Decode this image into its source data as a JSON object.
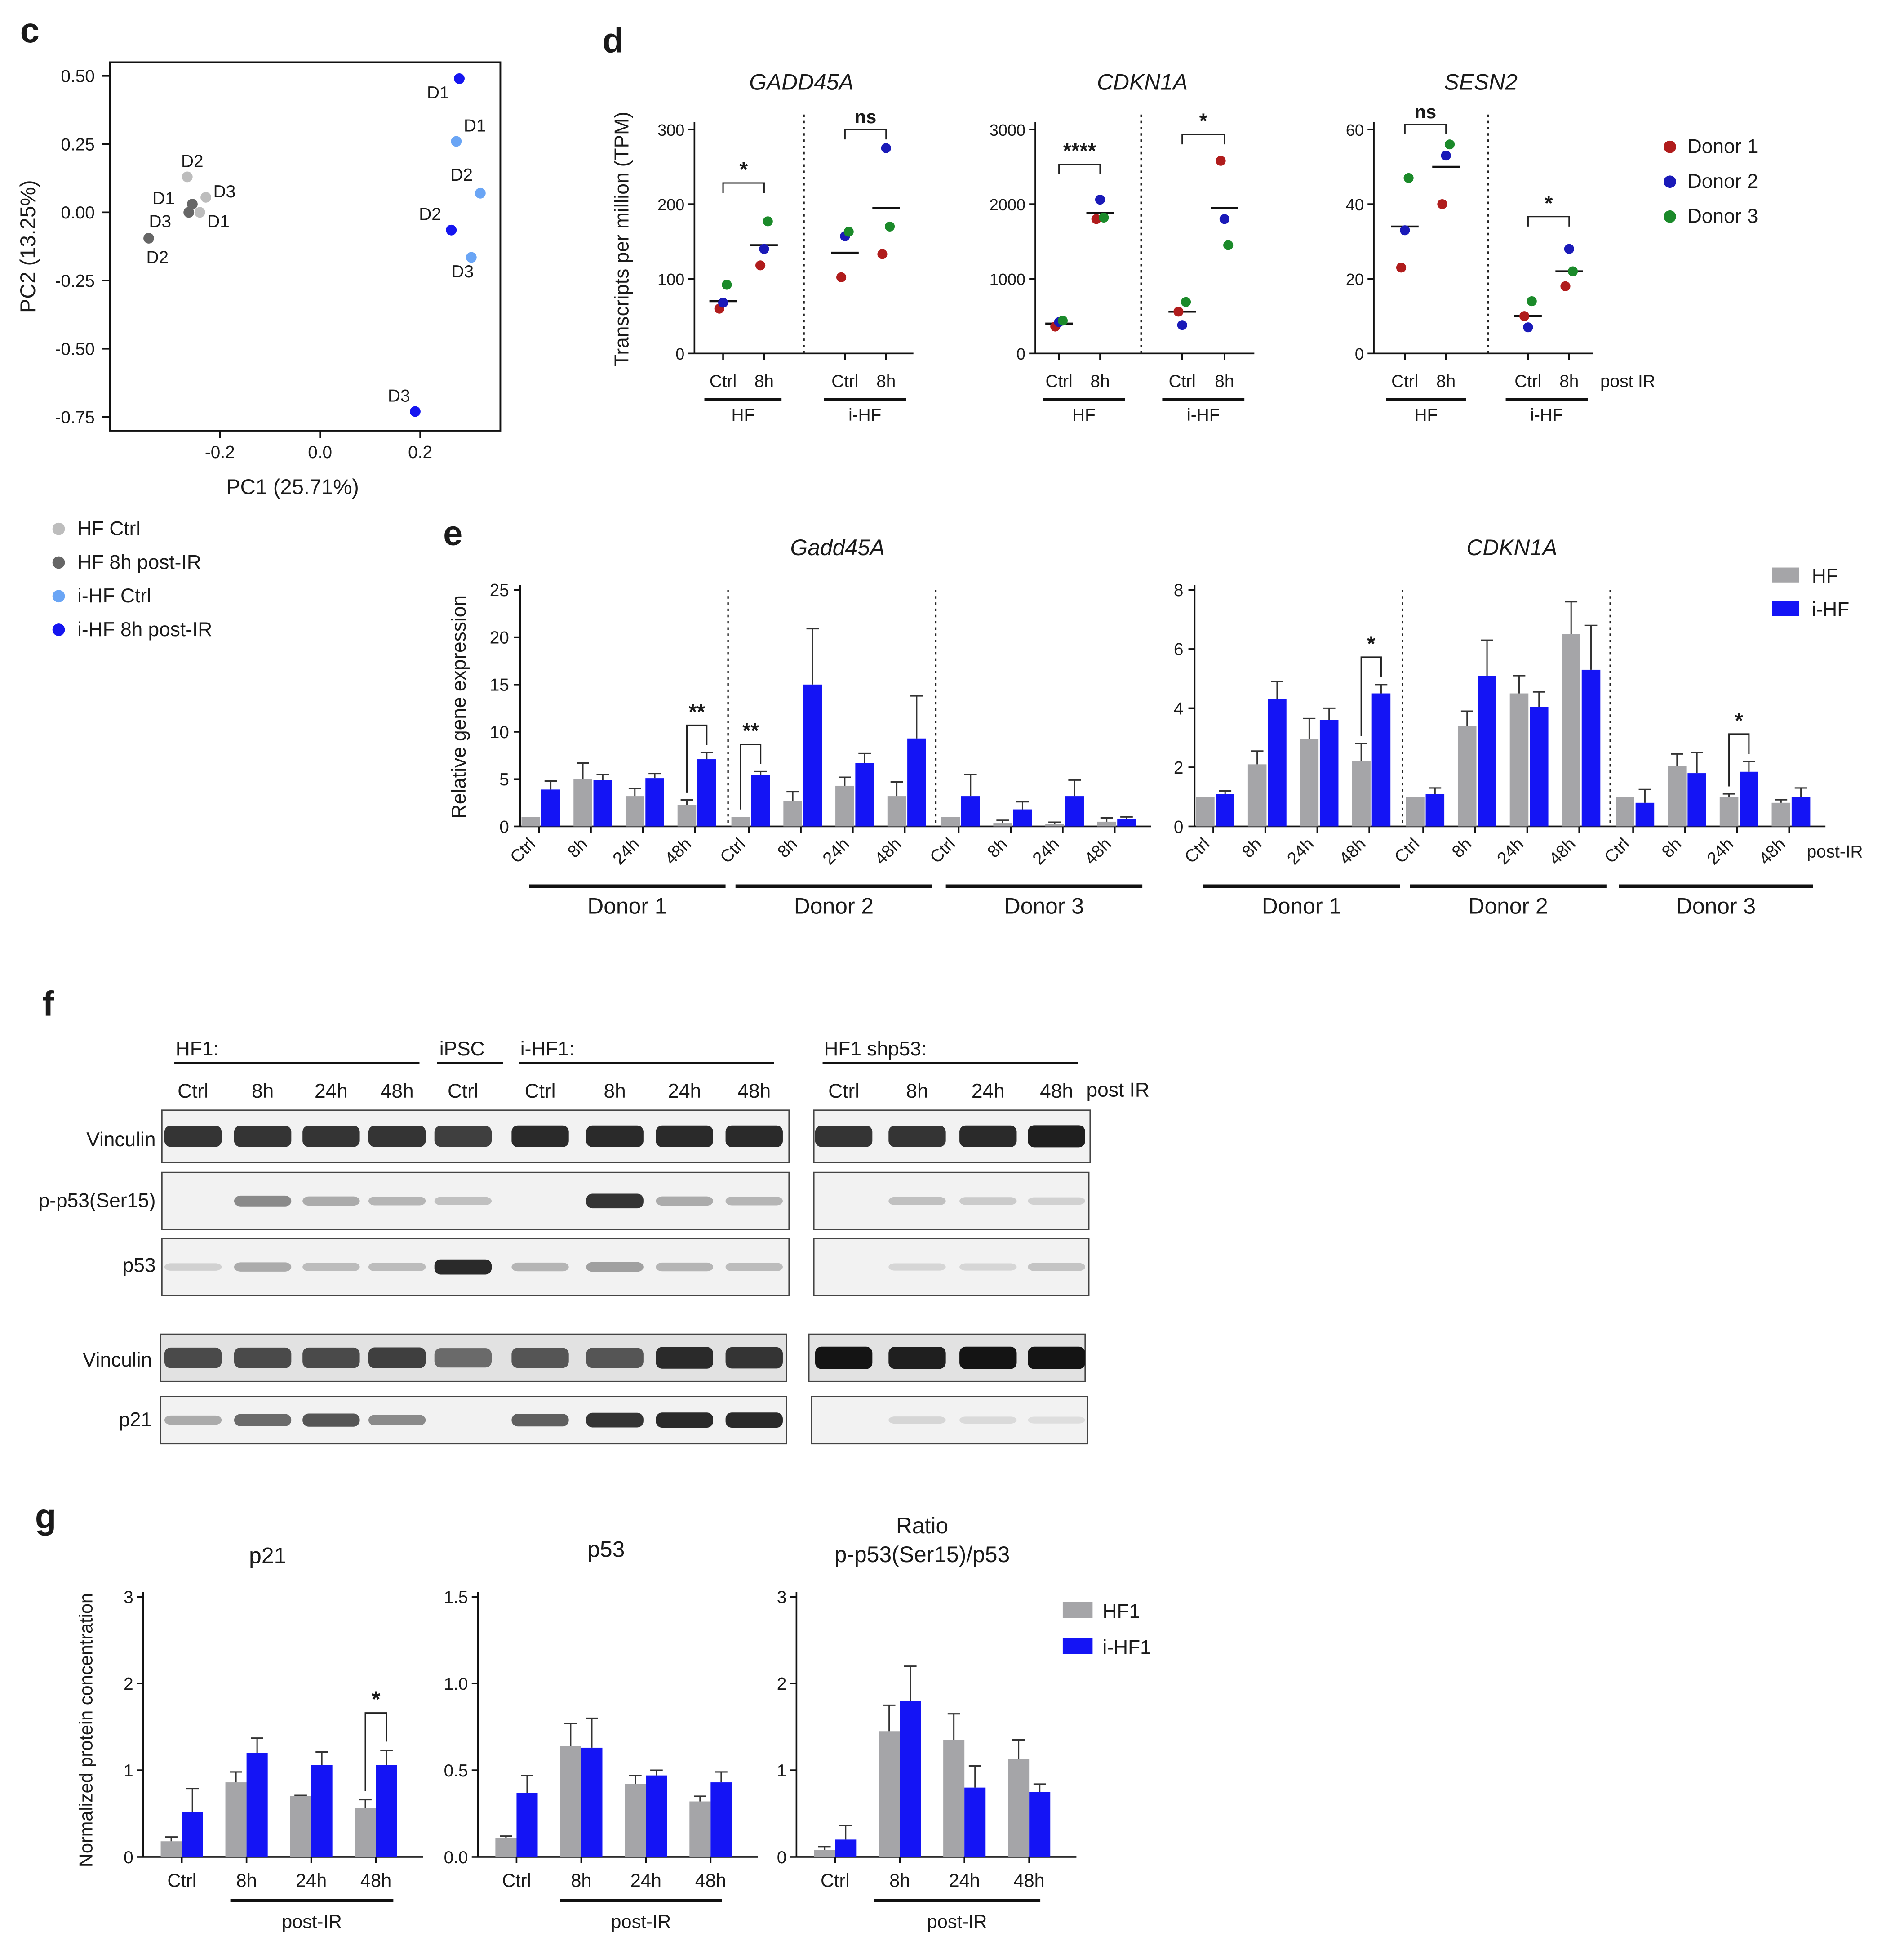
{
  "colors": {
    "hf_ctrl": "#bdbdbd",
    "hf_8h": "#666666",
    "ihf_ctrl": "#6aa5f5",
    "ihf_8h": "#1515f0",
    "donor1": "#b01c1c",
    "donor2": "#1a1ab8",
    "donor3": "#1b8a2a",
    "bar_hf": "#a5a5a8",
    "bar_ihf": "#1414f5"
  },
  "chart_data": [
    {
      "panel": "c",
      "type": "scatter",
      "xlabel": "PC1 (25.71%)",
      "ylabel": "PC2 (13.25%)",
      "xlim": [
        -0.42,
        0.36
      ],
      "ylim": [
        -0.8,
        0.55
      ],
      "xticks": [
        "-0.2",
        "0.0",
        "0.2"
      ],
      "yticks": [
        "0.50",
        "0.25",
        "0.00",
        "-0.25",
        "-0.50",
        "-0.75"
      ],
      "points": [
        {
          "group": "hf_ctrl",
          "label": "D2",
          "x": -0.265,
          "y": 0.13
        },
        {
          "group": "hf_ctrl",
          "label": "D3",
          "x": -0.228,
          "y": 0.055
        },
        {
          "group": "hf_ctrl",
          "label": "D1",
          "x": -0.24,
          "y": 0.0
        },
        {
          "group": "hf_8h",
          "label": "D1",
          "x": -0.255,
          "y": 0.03
        },
        {
          "group": "hf_8h",
          "label": "D3",
          "x": -0.262,
          "y": 0.0
        },
        {
          "group": "hf_8h",
          "label": "D2",
          "x": -0.342,
          "y": -0.095
        },
        {
          "group": "ihf_ctrl",
          "label": "D1",
          "x": 0.272,
          "y": 0.26
        },
        {
          "group": "ihf_ctrl",
          "label": "D2",
          "x": 0.32,
          "y": 0.07
        },
        {
          "group": "ihf_ctrl",
          "label": "D3",
          "x": 0.302,
          "y": -0.165
        },
        {
          "group": "ihf_8h",
          "label": "D1",
          "x": 0.278,
          "y": 0.49
        },
        {
          "group": "ihf_8h",
          "label": "D2",
          "x": 0.262,
          "y": -0.065
        },
        {
          "group": "ihf_8h",
          "label": "D3",
          "x": 0.19,
          "y": -0.73
        }
      ],
      "legend": [
        "HF Ctrl",
        "HF 8h post-IR",
        "i-HF Ctrl",
        "i-HF 8h post-IR"
      ]
    },
    {
      "panel": "d",
      "type": "scatter",
      "ylabel": "Transcripts per million (TPM)",
      "legend": [
        "Donor 1",
        "Donor 2",
        "Donor 3"
      ],
      "categories": [
        "Ctrl",
        "8h",
        "Ctrl",
        "8h"
      ],
      "groups": [
        "HF",
        "i-HF"
      ],
      "post_label": "post IR",
      "genes": [
        {
          "name": "GADD45A",
          "ymax": 300,
          "yticks": [
            "0",
            "100",
            "200",
            "300"
          ],
          "values": [
            [
              60,
              68,
              92
            ],
            [
              118,
              140,
              177
            ],
            [
              102,
              157,
              163
            ],
            [
              133,
              275,
              170
            ]
          ],
          "means": [
            70,
            145,
            135,
            195
          ],
          "sig": [
            "*",
            "ns"
          ]
        },
        {
          "name": "CDKN1A",
          "ymax": 3000,
          "yticks": [
            "0",
            "1000",
            "2000",
            "3000"
          ],
          "values": [
            [
              360,
              420,
              440
            ],
            [
              1800,
              2060,
              1820
            ],
            [
              560,
              380,
              690
            ],
            [
              2580,
              1800,
              1450
            ]
          ],
          "means": [
            400,
            1880,
            560,
            1950
          ],
          "sig": [
            "****",
            "*"
          ]
        },
        {
          "name": "SESN2",
          "ymax": 60,
          "yticks": [
            "0",
            "20",
            "40",
            "60"
          ],
          "values": [
            [
              23,
              33,
              47
            ],
            [
              40,
              53,
              56
            ],
            [
              10,
              7,
              14
            ],
            [
              18,
              28,
              22
            ]
          ],
          "means": [
            34,
            50,
            10,
            22
          ],
          "sig": [
            "ns",
            "*"
          ]
        }
      ]
    },
    {
      "panel": "e",
      "type": "bar",
      "ylabel": "Relative gene expression",
      "series_names": [
        "HF",
        "i-HF"
      ],
      "post_label": "post-IR",
      "categories": [
        "Ctrl",
        "8h",
        "24h",
        "48h"
      ],
      "donors": [
        "Donor 1",
        "Donor 2",
        "Donor 3"
      ],
      "genes": [
        {
          "name": "Gadd45A",
          "ymax": 25,
          "yticks": [
            "0",
            "5",
            "10",
            "15",
            "20",
            "25"
          ],
          "hf": [
            [
              1,
              5,
              3.2,
              2.3
            ],
            [
              1,
              2.7,
              4.3,
              3.2
            ],
            [
              1,
              0.35,
              0.25,
              0.5
            ]
          ],
          "ihf": [
            [
              3.9,
              4.9,
              5.1,
              7.1
            ],
            [
              5.4,
              15,
              6.7,
              9.3
            ],
            [
              3.2,
              1.8,
              3.2,
              0.8
            ]
          ],
          "hf_err": [
            [
              0,
              1.7,
              0.8,
              0.5
            ],
            [
              0,
              1.0,
              0.9,
              1.5
            ],
            [
              0,
              0.3,
              0.2,
              0.4
            ]
          ],
          "ihf_err": [
            [
              0.9,
              0.6,
              0.5,
              0.7
            ],
            [
              0.4,
              5.9,
              1.0,
              4.5
            ],
            [
              2.3,
              0.8,
              1.7,
              0.2
            ]
          ],
          "sig": [
            [
              0,
              3,
              "**"
            ],
            [
              1,
              0,
              "**"
            ]
          ]
        },
        {
          "name": "CDKN1A",
          "ymax": 8,
          "yticks": [
            "0",
            "2",
            "4",
            "6",
            "8"
          ],
          "hf": [
            [
              1,
              2.1,
              2.95,
              2.2
            ],
            [
              1,
              3.4,
              4.5,
              6.5
            ],
            [
              1,
              2.05,
              1,
              0.8
            ]
          ],
          "ihf": [
            [
              1.1,
              4.3,
              3.6,
              4.5
            ],
            [
              1.1,
              5.1,
              4.05,
              5.3
            ],
            [
              0.8,
              1.8,
              1.85,
              1.0
            ]
          ],
          "hf_err": [
            [
              0,
              0.45,
              0.7,
              0.6
            ],
            [
              0,
              0.5,
              0.6,
              1.1
            ],
            [
              0,
              0.4,
              0.1,
              0.1
            ]
          ],
          "ihf_err": [
            [
              0.1,
              0.6,
              0.4,
              0.3
            ],
            [
              0.2,
              1.2,
              0.5,
              1.5
            ],
            [
              0.45,
              0.7,
              0.35,
              0.3
            ]
          ],
          "sig": [
            [
              0,
              3,
              "*"
            ],
            [
              2,
              2,
              "*"
            ]
          ]
        }
      ]
    },
    {
      "panel": "g",
      "type": "bar",
      "ylabel": "Normalized protein concentration",
      "series_names": [
        "HF1",
        "i-HF1"
      ],
      "categories": [
        "Ctrl",
        "8h",
        "24h",
        "48h"
      ],
      "post_label": "post-IR",
      "plots": [
        {
          "title": "p21",
          "ymax": 3,
          "yticks": [
            "0",
            "1",
            "2",
            "3"
          ],
          "hf": [
            0.18,
            0.86,
            0.7,
            0.56
          ],
          "ihf": [
            0.52,
            1.2,
            1.06,
            1.06
          ],
          "hf_err": [
            0.05,
            0.12,
            0.01,
            0.1
          ],
          "ihf_err": [
            0.27,
            0.17,
            0.15,
            0.17
          ],
          "sig": [
            3,
            "*"
          ]
        },
        {
          "title": "p53",
          "ymax": 1.5,
          "yticks": [
            "0.0",
            "0.5",
            "1.0",
            "1.5"
          ],
          "hf": [
            0.11,
            0.64,
            0.42,
            0.32
          ],
          "ihf": [
            0.37,
            0.63,
            0.47,
            0.43
          ],
          "hf_err": [
            0.01,
            0.13,
            0.05,
            0.03
          ],
          "ihf_err": [
            0.1,
            0.17,
            0.03,
            0.06
          ],
          "sig": null
        },
        {
          "title": "Ratio",
          "title2": "p-p53(Ser15)/p53",
          "ymax": 3,
          "yticks": [
            "0",
            "1",
            "2",
            "3"
          ],
          "hf": [
            0.08,
            1.45,
            1.35,
            1.13
          ],
          "ihf": [
            0.2,
            1.8,
            0.8,
            0.75
          ],
          "hf_err": [
            0.04,
            0.3,
            0.3,
            0.22
          ],
          "ihf_err": [
            0.16,
            0.4,
            0.25,
            0.09
          ],
          "sig": null
        }
      ]
    }
  ],
  "labels": {
    "panel_c": "c",
    "panel_d": "d",
    "panel_e": "e",
    "panel_f": "f",
    "panel_g": "g"
  },
  "blot": {
    "groups": [
      "HF1:",
      "iPSC",
      "i-HF1:",
      "HF1 shp53:"
    ],
    "lanes": [
      "Ctrl",
      "8h",
      "24h",
      "48h",
      "Ctrl",
      "Ctrl",
      "8h",
      "24h",
      "48h",
      "Ctrl",
      "8h",
      "24h",
      "48h"
    ],
    "post_label": "post IR",
    "rows": [
      "Vinculin",
      "p-p53(Ser15)",
      "p53",
      "Vinculin",
      "p21"
    ],
    "intensities": [
      [
        0.85,
        0.85,
        0.85,
        0.85,
        0.8,
        0.9,
        0.9,
        0.9,
        0.9,
        0.85,
        0.85,
        0.9,
        0.95
      ],
      [
        0.0,
        0.45,
        0.3,
        0.25,
        0.2,
        0.0,
        0.85,
        0.3,
        0.25,
        0.0,
        0.2,
        0.15,
        0.12
      ],
      [
        0.12,
        0.3,
        0.22,
        0.22,
        0.9,
        0.25,
        0.35,
        0.25,
        0.22,
        0.0,
        0.1,
        0.1,
        0.18
      ],
      [
        0.75,
        0.75,
        0.75,
        0.8,
        0.6,
        0.7,
        0.7,
        0.9,
        0.85,
        1.0,
        0.95,
        1.0,
        1.0
      ],
      [
        0.3,
        0.6,
        0.7,
        0.45,
        0.0,
        0.65,
        0.85,
        0.9,
        0.9,
        0.0,
        0.1,
        0.08,
        0.06
      ]
    ]
  }
}
